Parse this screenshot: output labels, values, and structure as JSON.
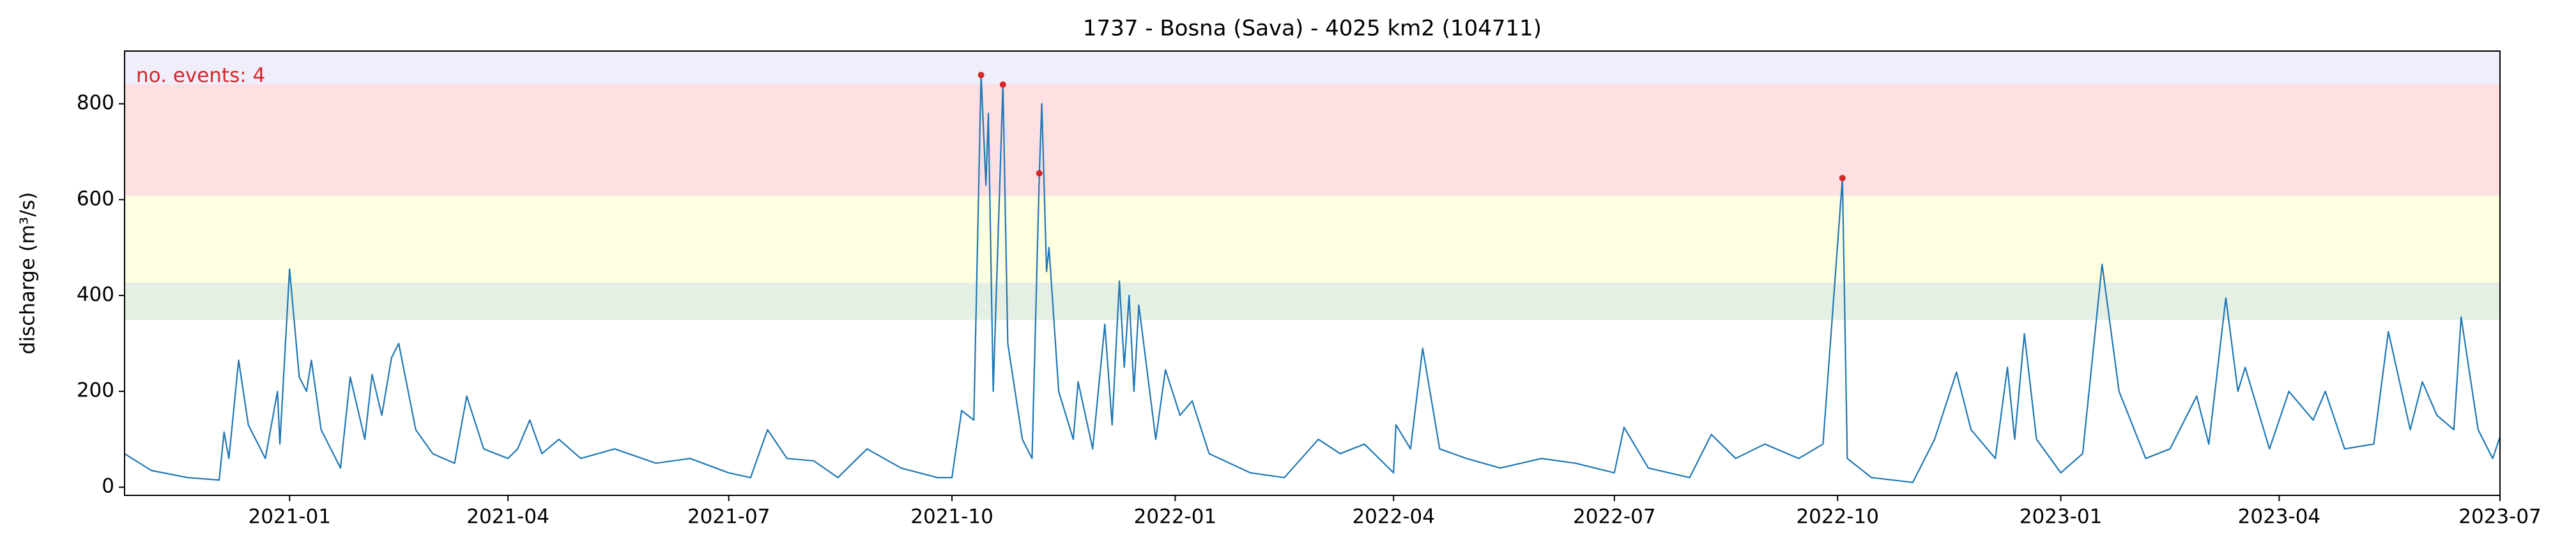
{
  "chart_data": {
    "type": "line",
    "title": "1737 - Bosna (Sava) - 4025 km2 (104711)",
    "ylabel": "discharge (m³/s)",
    "annotation": "no. events: 4",
    "annotation_color": "#d62728",
    "xlim": [
      "2020-10-25",
      "2023-07-01"
    ],
    "ylim": [
      -17,
      910
    ],
    "yticks": [
      0,
      200,
      400,
      600,
      800
    ],
    "xticks": [
      {
        "value": "2021-01-01",
        "label": "2021-01"
      },
      {
        "value": "2021-04-01",
        "label": "2021-04"
      },
      {
        "value": "2021-07-01",
        "label": "2021-07"
      },
      {
        "value": "2021-10-01",
        "label": "2021-10"
      },
      {
        "value": "2022-01-01",
        "label": "2022-01"
      },
      {
        "value": "2022-04-01",
        "label": "2022-04"
      },
      {
        "value": "2022-07-01",
        "label": "2022-07"
      },
      {
        "value": "2022-10-01",
        "label": "2022-10"
      },
      {
        "value": "2023-01-01",
        "label": "2023-01"
      },
      {
        "value": "2023-04-01",
        "label": "2023-04"
      },
      {
        "value": "2023-07-01",
        "label": "2023-07"
      }
    ],
    "bands": [
      {
        "from": 349,
        "to": 427,
        "color": "#e5f0e5"
      },
      {
        "from": 427,
        "to": 608,
        "color": "#fefee0"
      },
      {
        "from": 608,
        "to": 841,
        "color": "#fee0e2"
      },
      {
        "from": 841,
        "to": 910,
        "color": "#efeefa"
      }
    ],
    "series": [
      {
        "color": "#1f77b4",
        "x": [
          "2020-10-25",
          "2020-11-05",
          "2020-11-20",
          "2020-12-03",
          "2020-12-05",
          "2020-12-07",
          "2020-12-11",
          "2020-12-15",
          "2020-12-22",
          "2020-12-27",
          "2020-12-28",
          "2021-01-01",
          "2021-01-05",
          "2021-01-08",
          "2021-01-10",
          "2021-01-14",
          "2021-01-22",
          "2021-01-26",
          "2021-02-01",
          "2021-02-04",
          "2021-02-08",
          "2021-02-12",
          "2021-02-15",
          "2021-02-22",
          "2021-03-01",
          "2021-03-10",
          "2021-03-15",
          "2021-03-22",
          "2021-04-01",
          "2021-04-05",
          "2021-04-10",
          "2021-04-15",
          "2021-04-22",
          "2021-05-01",
          "2021-05-15",
          "2021-06-01",
          "2021-06-15",
          "2021-07-01",
          "2021-07-10",
          "2021-07-17",
          "2021-07-25",
          "2021-08-05",
          "2021-08-15",
          "2021-08-27",
          "2021-09-10",
          "2021-09-25",
          "2021-10-01",
          "2021-10-05",
          "2021-10-10",
          "2021-10-13",
          "2021-10-15",
          "2021-10-16",
          "2021-10-18",
          "2021-10-22",
          "2021-10-24",
          "2021-10-30",
          "2021-11-03",
          "2021-11-06",
          "2021-11-07",
          "2021-11-09",
          "2021-11-10",
          "2021-11-14",
          "2021-11-20",
          "2021-11-22",
          "2021-11-28",
          "2021-12-03",
          "2021-12-06",
          "2021-12-09",
          "2021-12-11",
          "2021-12-13",
          "2021-12-15",
          "2021-12-17",
          "2021-12-24",
          "2021-12-28",
          "2022-01-03",
          "2022-01-08",
          "2022-01-15",
          "2022-02-01",
          "2022-02-15",
          "2022-03-01",
          "2022-03-10",
          "2022-03-20",
          "2022-04-01",
          "2022-04-02",
          "2022-04-08",
          "2022-04-13",
          "2022-04-20",
          "2022-05-01",
          "2022-05-15",
          "2022-06-01",
          "2022-06-15",
          "2022-07-01",
          "2022-07-05",
          "2022-07-15",
          "2022-08-01",
          "2022-08-10",
          "2022-08-20",
          "2022-09-01",
          "2022-09-15",
          "2022-09-25",
          "2022-10-03",
          "2022-10-05",
          "2022-10-15",
          "2022-11-01",
          "2022-11-10",
          "2022-11-19",
          "2022-11-25",
          "2022-12-05",
          "2022-12-10",
          "2022-12-13",
          "2022-12-17",
          "2022-12-22",
          "2023-01-01",
          "2023-01-10",
          "2023-01-18",
          "2023-01-25",
          "2023-02-05",
          "2023-02-15",
          "2023-02-26",
          "2023-03-03",
          "2023-03-10",
          "2023-03-15",
          "2023-03-18",
          "2023-03-28",
          "2023-04-05",
          "2023-04-15",
          "2023-04-20",
          "2023-04-28",
          "2023-05-10",
          "2023-05-16",
          "2023-05-25",
          "2023-05-30",
          "2023-06-05",
          "2023-06-12",
          "2023-06-15",
          "2023-06-22",
          "2023-06-28",
          "2023-07-01"
        ],
        "values": [
          70,
          35,
          20,
          15,
          115,
          60,
          265,
          130,
          60,
          200,
          90,
          455,
          230,
          200,
          265,
          120,
          40,
          230,
          100,
          235,
          150,
          270,
          300,
          120,
          70,
          50,
          190,
          80,
          60,
          80,
          140,
          70,
          100,
          60,
          80,
          50,
          60,
          30,
          20,
          120,
          60,
          55,
          20,
          80,
          40,
          20,
          20,
          160,
          140,
          860,
          630,
          780,
          200,
          840,
          300,
          100,
          60,
          655,
          800,
          450,
          500,
          200,
          100,
          220,
          80,
          340,
          130,
          430,
          250,
          400,
          200,
          380,
          100,
          245,
          150,
          180,
          70,
          30,
          20,
          100,
          70,
          90,
          30,
          130,
          80,
          290,
          80,
          60,
          40,
          60,
          50,
          30,
          125,
          40,
          20,
          110,
          60,
          90,
          60,
          90,
          645,
          60,
          20,
          10,
          100,
          240,
          120,
          60,
          250,
          100,
          320,
          100,
          30,
          70,
          465,
          200,
          60,
          80,
          190,
          90,
          395,
          200,
          250,
          80,
          200,
          140,
          200,
          80,
          90,
          325,
          120,
          220,
          150,
          120,
          355,
          120,
          60,
          105
        ]
      }
    ],
    "events": {
      "color": "#d62728",
      "x": [
        "2021-10-13",
        "2021-10-22",
        "2021-11-06",
        "2022-10-03"
      ],
      "values": [
        860,
        840,
        655,
        645
      ]
    }
  }
}
